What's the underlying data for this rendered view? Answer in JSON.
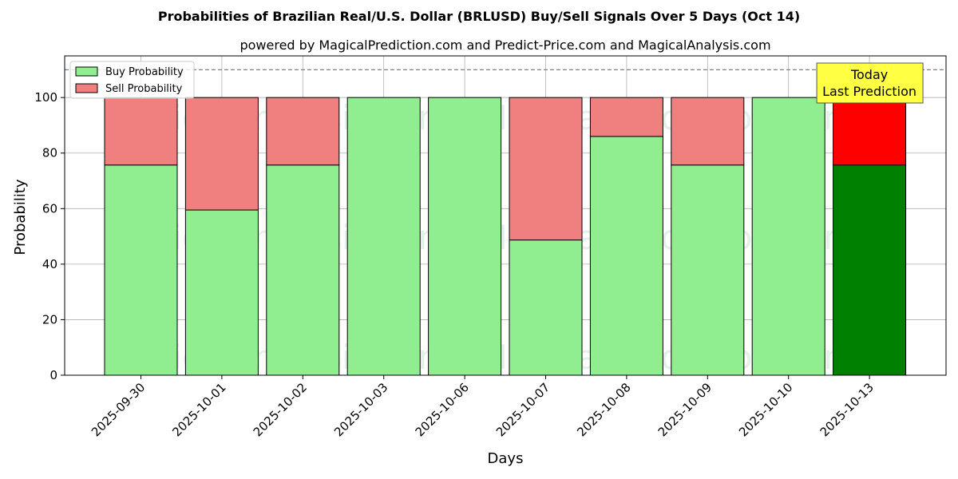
{
  "chart_data": {
    "type": "bar",
    "stacked": true,
    "title": "Probabilities of Brazilian Real/U.S. Dollar (BRLUSD) Buy/Sell Signals Over 5 Days (Oct 14)",
    "subtitle": "powered by MagicalPrediction.com and Predict-Price.com and MagicalAnalysis.com",
    "xlabel": "Days",
    "ylabel": "Probability",
    "ylim": [
      0,
      115
    ],
    "yticks": [
      0,
      20,
      40,
      60,
      80,
      100
    ],
    "grid": true,
    "legend_position": "top-left",
    "reference_line": 110,
    "categories": [
      "2025-09-30",
      "2025-10-01",
      "2025-10-02",
      "2025-10-03",
      "2025-10-06",
      "2025-10-07",
      "2025-10-08",
      "2025-10-09",
      "2025-10-10",
      "2025-10-13"
    ],
    "series": [
      {
        "name": "Buy Probability",
        "color": "#90ee90",
        "highlight_color": "#008000",
        "values": [
          75.7,
          59.5,
          75.7,
          100,
          100,
          48.7,
          86.0,
          75.7,
          100,
          75.7
        ]
      },
      {
        "name": "Sell Probability",
        "color": "#f08080",
        "highlight_color": "#ff0000",
        "values": [
          24.3,
          40.5,
          24.3,
          0,
          0,
          51.3,
          14.0,
          24.3,
          0,
          24.3
        ]
      }
    ],
    "highlight_index": 9,
    "annotation": {
      "lines": [
        "Today",
        "Last Prediction"
      ],
      "background": "#ffff44"
    },
    "watermarks": [
      "MagicalAnalysis.com",
      "MagicalPrediction.com"
    ]
  }
}
